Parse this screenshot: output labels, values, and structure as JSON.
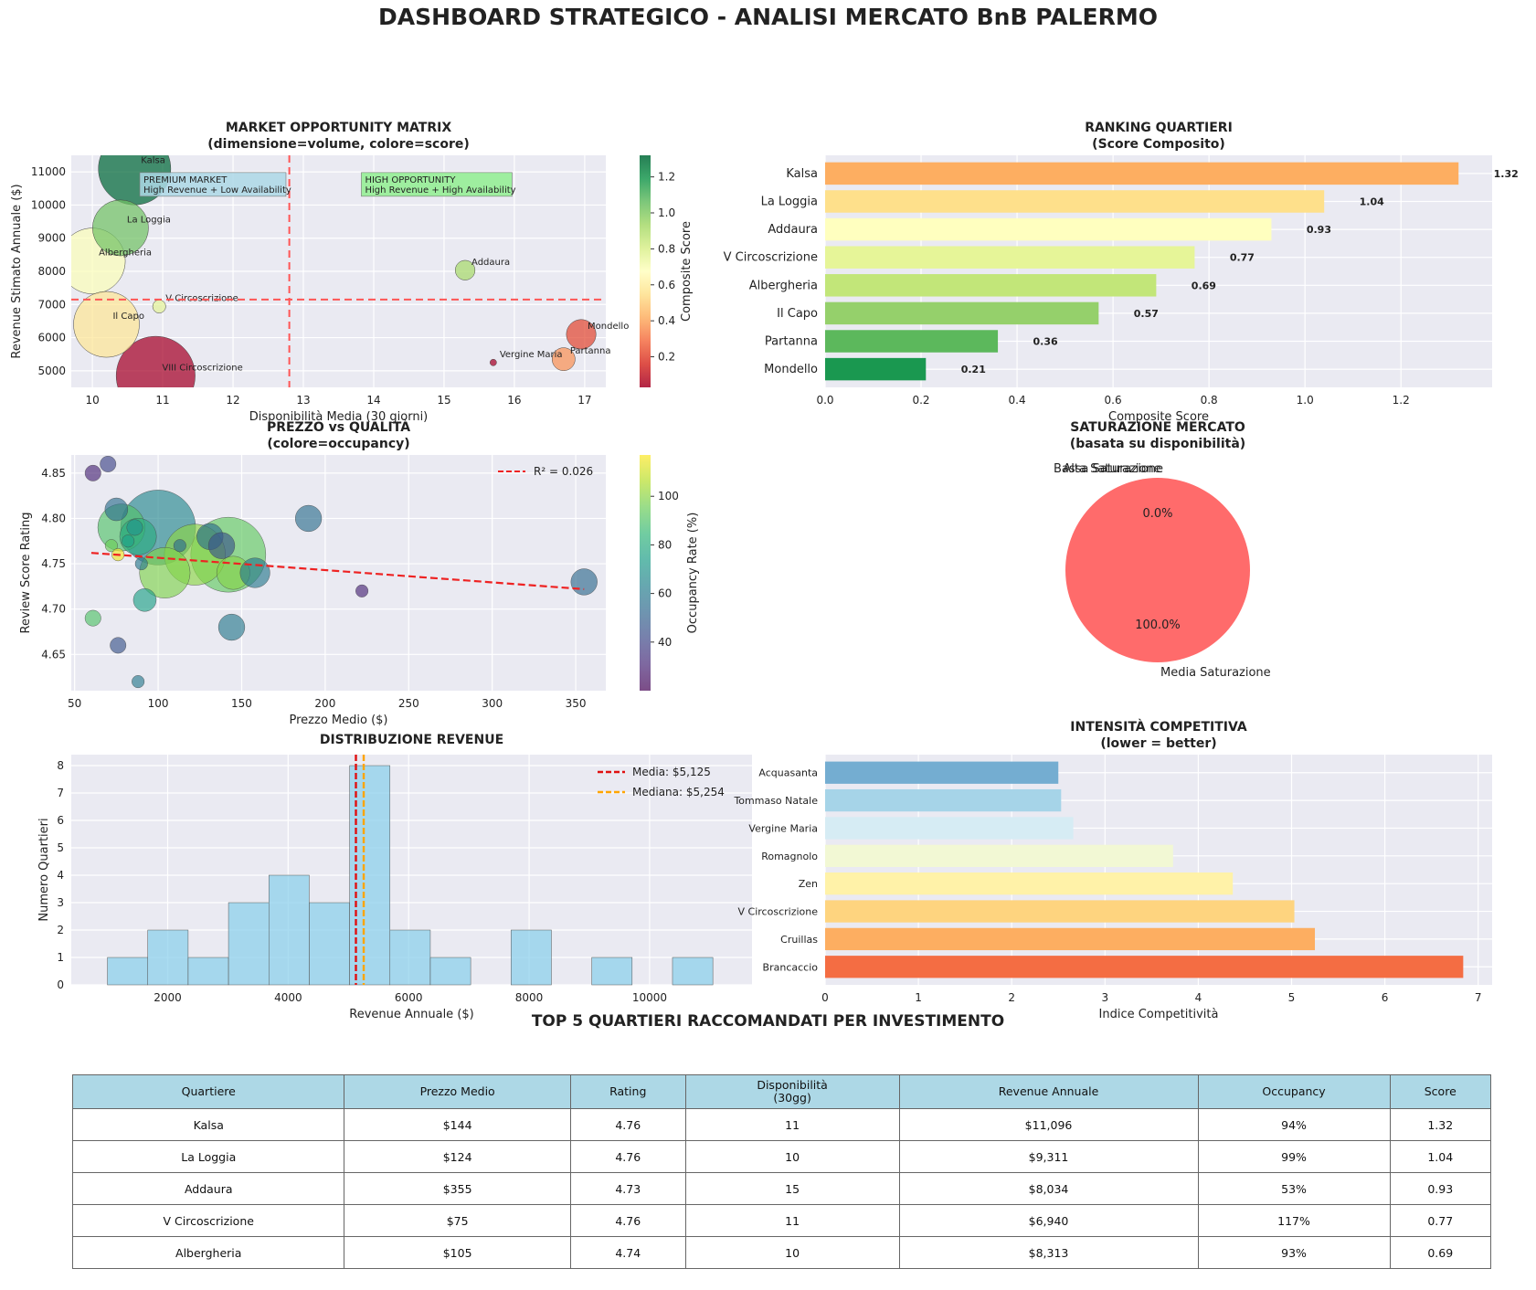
{
  "dashboard": {
    "title": "DASHBOARD STRATEGICO - ANALISI MERCATO BnB PALERMO"
  },
  "colors": {
    "panel_bg": "#eaeaf2",
    "grid": "#ffffff",
    "hist_fill": "#87ceeb",
    "ref_line": "#ff5555",
    "saturation_fill": "#ff6b6b"
  },
  "chart_data": [
    {
      "id": "opportunity",
      "type": "scatter",
      "title": "MARKET OPPORTUNITY MATRIX",
      "subtitle": "(dimensione=volume, colore=score)",
      "xlabel": "Disponibilità Media (30 giorni)",
      "ylabel": "Revenue Stimato Annuale ($)",
      "colorbar_label": "Composite Score",
      "xlim": [
        9.7,
        17.3
      ],
      "ylim": [
        4500,
        11500
      ],
      "xticks": [
        10,
        11,
        12,
        13,
        14,
        15,
        16,
        17
      ],
      "yticks": [
        5000,
        6000,
        7000,
        8000,
        9000,
        10000,
        11000
      ],
      "colorbar_ticks": [
        0.2,
        0.4,
        0.6,
        0.8,
        1.0,
        1.2
      ],
      "vline": 12.8,
      "hline": 7150,
      "points": [
        {
          "name": "Kalsa",
          "x": 10.6,
          "y": 11096,
          "score": 1.32,
          "volume": 22
        },
        {
          "name": "La Loggia",
          "x": 10.4,
          "y": 9311,
          "score": 1.04,
          "volume": 17
        },
        {
          "name": "Albergheria",
          "x": 10.0,
          "y": 8313,
          "score": 0.69,
          "volume": 20
        },
        {
          "name": "Addaura",
          "x": 15.3,
          "y": 8034,
          "score": 0.93,
          "volume": 6
        },
        {
          "name": "V Circoscrizione",
          "x": 10.95,
          "y": 6940,
          "score": 0.77,
          "volume": 4
        },
        {
          "name": "Il Capo",
          "x": 10.2,
          "y": 6400,
          "score": 0.57,
          "volume": 20
        },
        {
          "name": "Mondello",
          "x": 16.95,
          "y": 6100,
          "score": 0.21,
          "volume": 9
        },
        {
          "name": "Vergine Maria",
          "x": 15.7,
          "y": 5250,
          "score": 0.03,
          "volume": 2
        },
        {
          "name": "Partanna",
          "x": 16.7,
          "y": 5350,
          "score": 0.36,
          "volume": 7
        },
        {
          "name": "VIII Circoscrizione",
          "x": 10.9,
          "y": 4850,
          "score": 0.03,
          "volume": 24
        }
      ],
      "annotations": [
        {
          "line1": "PREMIUM MARKET",
          "line2": "High Revenue + Low Availability",
          "x": 10.7,
          "y": 10650
        },
        {
          "line1": "HIGH OPPORTUNITY",
          "line2": "High Revenue + High Availability",
          "x": 13.85,
          "y": 10650
        }
      ]
    },
    {
      "id": "ranking",
      "type": "bar",
      "orientation": "horizontal",
      "title": "RANKING QUARTIERI",
      "subtitle": "(Score Composito)",
      "xlabel": "Composite Score",
      "xlim": [
        0,
        1.39
      ],
      "xticks": [
        0.0,
        0.2,
        0.4,
        0.6,
        0.8,
        1.0,
        1.2
      ],
      "categories": [
        "Kalsa",
        "La Loggia",
        "Addaura",
        "V Circoscrizione",
        "Albergheria",
        "Il Capo",
        "Partanna",
        "Mondello"
      ],
      "values": [
        1.32,
        1.04,
        0.93,
        0.77,
        0.69,
        0.57,
        0.36,
        0.21
      ],
      "value_labels": [
        "1.32",
        "1.04",
        "0.93",
        "0.77",
        "0.69",
        "0.57",
        "0.36",
        "0.21"
      ],
      "colors": [
        "#fdae61",
        "#fee08b",
        "#ffffbf",
        "#e6f598",
        "#c2e679",
        "#95d06b",
        "#5cb85c",
        "#1a9850"
      ]
    },
    {
      "id": "price_quality",
      "type": "scatter",
      "title": "PREZZO vs QUALITÀ",
      "subtitle": "(colore=occupancy)",
      "xlabel": "Prezzo Medio ($)",
      "ylabel": "Review Score Rating",
      "colorbar_label": "Occupancy Rate (%)",
      "xlim": [
        48,
        368
      ],
      "ylim": [
        4.61,
        4.87
      ],
      "xticks": [
        50,
        100,
        150,
        200,
        250,
        300,
        350
      ],
      "yticks": [
        4.65,
        4.7,
        4.75,
        4.8,
        4.85
      ],
      "colorbar_ticks": [
        40,
        60,
        80,
        100
      ],
      "legend": "R² = 0.026",
      "trend": {
        "x0": 60,
        "y0": 4.762,
        "x1": 355,
        "y1": 4.722
      },
      "points": [
        {
          "x": 61,
          "y": 4.85,
          "occ": 30,
          "size": 3
        },
        {
          "x": 70,
          "y": 4.86,
          "occ": 40,
          "size": 3
        },
        {
          "x": 75,
          "y": 4.81,
          "occ": 55,
          "size": 5
        },
        {
          "x": 78,
          "y": 4.79,
          "occ": 90,
          "size": 12
        },
        {
          "x": 72,
          "y": 4.77,
          "occ": 95,
          "size": 2
        },
        {
          "x": 76,
          "y": 4.76,
          "occ": 115,
          "size": 2
        },
        {
          "x": 86,
          "y": 4.79,
          "occ": 70,
          "size": 3
        },
        {
          "x": 88,
          "y": 4.78,
          "occ": 80,
          "size": 9
        },
        {
          "x": 82,
          "y": 4.775,
          "occ": 75,
          "size": 2
        },
        {
          "x": 90,
          "y": 4.75,
          "occ": 60,
          "size": 2
        },
        {
          "x": 100,
          "y": 4.79,
          "occ": 65,
          "size": 20
        },
        {
          "x": 104,
          "y": 4.74,
          "occ": 98,
          "size": 13
        },
        {
          "x": 113,
          "y": 4.77,
          "occ": 55,
          "size": 2
        },
        {
          "x": 92,
          "y": 4.71,
          "occ": 75,
          "size": 5
        },
        {
          "x": 61,
          "y": 4.69,
          "occ": 90,
          "size": 3
        },
        {
          "x": 76,
          "y": 4.66,
          "occ": 45,
          "size": 3
        },
        {
          "x": 88,
          "y": 4.62,
          "occ": 60,
          "size": 2
        },
        {
          "x": 122,
          "y": 4.76,
          "occ": 100,
          "size": 16
        },
        {
          "x": 131,
          "y": 4.78,
          "occ": 55,
          "size": 6
        },
        {
          "x": 142,
          "y": 4.76,
          "occ": 93,
          "size": 20
        },
        {
          "x": 138,
          "y": 4.77,
          "occ": 45,
          "size": 6
        },
        {
          "x": 145,
          "y": 4.74,
          "occ": 99,
          "size": 8
        },
        {
          "x": 158,
          "y": 4.74,
          "occ": 60,
          "size": 7
        },
        {
          "x": 144,
          "y": 4.68,
          "occ": 60,
          "size": 6
        },
        {
          "x": 190,
          "y": 4.8,
          "occ": 55,
          "size": 6
        },
        {
          "x": 222,
          "y": 4.72,
          "occ": 30,
          "size": 2
        },
        {
          "x": 355,
          "y": 4.73,
          "occ": 53,
          "size": 6
        }
      ]
    },
    {
      "id": "saturation",
      "type": "pie",
      "title": "SATURAZIONE MERCATO",
      "subtitle": "(basata su disponibilità)",
      "slices": [
        {
          "label": "Media Saturazione",
          "value": 100.0,
          "pct": "100.0%"
        },
        {
          "label": "Alta Saturazione",
          "value": 0.0,
          "pct": "0.0%"
        },
        {
          "label": "Bassa Saturazione",
          "value": 0.0,
          "pct": "0.0%"
        }
      ]
    },
    {
      "id": "revenue_hist",
      "type": "bar",
      "kind": "histogram",
      "title": "DISTRIBUZIONE REVENUE",
      "xlabel": "Revenue Annuale ($)",
      "ylabel": "Numero Quartieri",
      "xlim": [
        400,
        11700
      ],
      "ylim": [
        0,
        8.4
      ],
      "xticks": [
        2000,
        4000,
        6000,
        8000,
        10000
      ],
      "yticks": [
        0,
        1,
        2,
        3,
        4,
        5,
        6,
        7,
        8
      ],
      "bin_start": 1000,
      "bin_width": 670,
      "values": [
        1,
        2,
        1,
        3,
        4,
        3,
        8,
        2,
        1,
        0,
        2,
        0,
        1,
        0,
        1
      ],
      "mean": 5125,
      "median": 5254,
      "mean_label": "Media: $5,125",
      "median_label": "Mediana: $5,254"
    },
    {
      "id": "competition",
      "type": "bar",
      "orientation": "horizontal",
      "title": "INTENSITÀ COMPETITIVA",
      "subtitle": "(lower = better)",
      "xlabel": "Indice Competitività",
      "xlim": [
        0,
        7.15
      ],
      "xticks": [
        0,
        1,
        2,
        3,
        4,
        5,
        6,
        7
      ],
      "categories": [
        "Acquasanta",
        "Tommaso Natale",
        "Vergine Maria",
        "Romagnolo",
        "Zen",
        "V Circoscrizione",
        "Cruillas",
        "Brancaccio"
      ],
      "values": [
        2.5,
        2.53,
        2.66,
        3.73,
        4.37,
        5.03,
        5.25,
        6.84
      ],
      "colors": [
        "#74add1",
        "#a6d4e8",
        "#d6ecf4",
        "#f2f8d4",
        "#fff2a8",
        "#fed47f",
        "#fdae61",
        "#f46d43"
      ]
    }
  ],
  "table": {
    "title": "TOP 5 QUARTIERI RACCOMANDATI PER INVESTIMENTO",
    "headers": [
      "Quartiere",
      "Prezzo Medio",
      "Rating",
      "Disponibilità\n(30gg)",
      "Revenue Annuale",
      "Occupancy",
      "Score"
    ],
    "rows": [
      [
        "Kalsa",
        "$144",
        "4.76",
        "11",
        "$11,096",
        "94%",
        "1.32"
      ],
      [
        "La Loggia",
        "$124",
        "4.76",
        "10",
        "$9,311",
        "99%",
        "1.04"
      ],
      [
        "Addaura",
        "$355",
        "4.73",
        "15",
        "$8,034",
        "53%",
        "0.93"
      ],
      [
        "V Circoscrizione",
        "$75",
        "4.76",
        "11",
        "$6,940",
        "117%",
        "0.77"
      ],
      [
        "Albergheria",
        "$105",
        "4.74",
        "10",
        "$8,313",
        "93%",
        "0.69"
      ]
    ]
  }
}
